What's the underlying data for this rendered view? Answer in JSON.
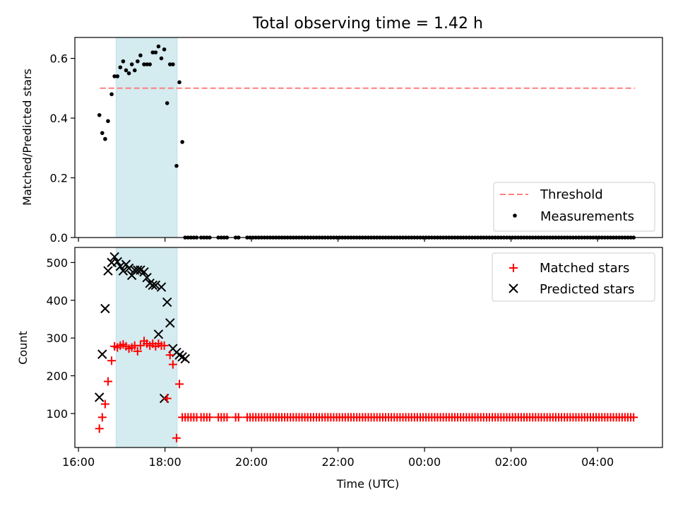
{
  "chart_data": [
    {
      "type": "scatter",
      "title": "Total observing time = 1.42 h",
      "xlabel": "",
      "ylabel": "Matched/Predicted stars",
      "xlim": [
        "2022-01-01T15:55",
        "2022-01-02T05:30"
      ],
      "ylim": [
        0,
        0.67
      ],
      "yticks": [
        0.0,
        0.2,
        0.4,
        0.6
      ],
      "ytick_labels": [
        "0.0",
        "0.2",
        "0.4",
        "0.6"
      ],
      "shaded_interval": [
        "2022-01-01T16:52",
        "2022-01-01T18:17"
      ],
      "shade_color": "#d4ebf0",
      "legend": {
        "position": "lower-right",
        "entries": [
          "Threshold",
          "Measurements"
        ]
      },
      "threshold": {
        "name": "Threshold",
        "value": 0.5,
        "x_start": "2022-01-01T16:30",
        "x_end": "2022-01-02T04:52",
        "color": "#ff7f7f"
      },
      "series": [
        {
          "name": "Measurements",
          "color": "#000000",
          "x": [
            "2022-01-01T16:29",
            "2022-01-01T16:33",
            "2022-01-01T16:37",
            "2022-01-01T16:41",
            "2022-01-01T16:46",
            "2022-01-01T16:50",
            "2022-01-01T16:54",
            "2022-01-01T16:58",
            "2022-01-01T17:02",
            "2022-01-01T17:06",
            "2022-01-01T17:10",
            "2022-01-01T17:14",
            "2022-01-01T17:18",
            "2022-01-01T17:22",
            "2022-01-01T17:26",
            "2022-01-01T17:31",
            "2022-01-01T17:35",
            "2022-01-01T17:39",
            "2022-01-01T17:43",
            "2022-01-01T17:47",
            "2022-01-01T17:51",
            "2022-01-01T17:55",
            "2022-01-01T17:59",
            "2022-01-01T18:03",
            "2022-01-01T18:07",
            "2022-01-01T18:11",
            "2022-01-01T18:16",
            "2022-01-01T18:20",
            "2022-01-01T18:24",
            "2022-01-01T18:28",
            "2022-01-01T18:32",
            "2022-01-01T18:36",
            "2022-01-01T18:40",
            "2022-01-01T18:44"
          ],
          "y": [
            0.41,
            0.35,
            0.33,
            0.39,
            0.48,
            0.54,
            0.54,
            0.57,
            0.59,
            0.56,
            0.55,
            0.58,
            0.56,
            0.59,
            0.61,
            0.58,
            0.58,
            0.58,
            0.62,
            0.62,
            0.64,
            0.6,
            0.63,
            0.45,
            0.58,
            0.58,
            0.24,
            0.52,
            0.32,
            0.0,
            0.0,
            0.0,
            0.0,
            0.0
          ]
        }
      ],
      "zero_series": {
        "name": "Measurements",
        "y": 0.0,
        "x_start": "2022-01-01T18:50",
        "x_end": "2022-01-02T04:52",
        "gaps": [
          [
            "2022-01-01T19:03",
            "2022-01-01T19:10"
          ],
          [
            "2022-01-01T19:29",
            "2022-01-01T19:36"
          ],
          [
            "2022-01-01T19:45",
            "2022-01-01T19:52"
          ]
        ]
      }
    },
    {
      "type": "scatter",
      "title": "",
      "xlabel": "Time (UTC)",
      "ylabel": "Count",
      "xlim": [
        "2022-01-01T15:55",
        "2022-01-02T05:30"
      ],
      "ylim": [
        10,
        540
      ],
      "yticks": [
        100,
        200,
        300,
        400,
        500
      ],
      "ytick_labels": [
        "100",
        "200",
        "300",
        "400",
        "500"
      ],
      "xticks": [
        "2022-01-01T16:00",
        "2022-01-01T18:00",
        "2022-01-01T20:00",
        "2022-01-01T22:00",
        "2022-01-02T00:00",
        "2022-01-02T02:00",
        "2022-01-02T04:00"
      ],
      "xtick_labels": [
        "16:00",
        "18:00",
        "20:00",
        "22:00",
        "00:00",
        "02:00",
        "04:00"
      ],
      "shaded_interval": [
        "2022-01-01T16:52",
        "2022-01-01T18:17"
      ],
      "shade_color": "#d4ebf0",
      "legend": {
        "position": "upper-right",
        "entries": [
          "Matched stars",
          "Predicted stars"
        ]
      },
      "series": [
        {
          "name": "Matched stars",
          "marker": "plus",
          "color": "#ff0000",
          "x": [
            "2022-01-01T16:29",
            "2022-01-01T16:33",
            "2022-01-01T16:37",
            "2022-01-01T16:41",
            "2022-01-01T16:46",
            "2022-01-01T16:50",
            "2022-01-01T16:54",
            "2022-01-01T16:58",
            "2022-01-01T17:02",
            "2022-01-01T17:06",
            "2022-01-01T17:10",
            "2022-01-01T17:14",
            "2022-01-01T17:18",
            "2022-01-01T17:22",
            "2022-01-01T17:26",
            "2022-01-01T17:31",
            "2022-01-01T17:35",
            "2022-01-01T17:39",
            "2022-01-01T17:43",
            "2022-01-01T17:47",
            "2022-01-01T17:51",
            "2022-01-01T17:55",
            "2022-01-01T17:59",
            "2022-01-01T18:03",
            "2022-01-01T18:07",
            "2022-01-01T18:11",
            "2022-01-01T18:16",
            "2022-01-01T18:20",
            "2022-01-01T18:24",
            "2022-01-01T18:28",
            "2022-01-01T18:32",
            "2022-01-01T18:36",
            "2022-01-01T18:40",
            "2022-01-01T18:44"
          ],
          "y": [
            60,
            90,
            125,
            185,
            240,
            278,
            275,
            280,
            283,
            278,
            272,
            275,
            280,
            265,
            280,
            292,
            285,
            280,
            285,
            278,
            285,
            280,
            280,
            140,
            255,
            230,
            35,
            178,
            90,
            90,
            90,
            90,
            90,
            90
          ]
        },
        {
          "name": "Predicted stars",
          "marker": "x",
          "color": "#000000",
          "x": [
            "2022-01-01T16:29",
            "2022-01-01T16:33",
            "2022-01-01T16:37",
            "2022-01-01T16:41",
            "2022-01-01T16:46",
            "2022-01-01T16:50",
            "2022-01-01T16:54",
            "2022-01-01T16:58",
            "2022-01-01T17:02",
            "2022-01-01T17:06",
            "2022-01-01T17:10",
            "2022-01-01T17:14",
            "2022-01-01T17:18",
            "2022-01-01T17:22",
            "2022-01-01T17:26",
            "2022-01-01T17:31",
            "2022-01-01T17:35",
            "2022-01-01T17:39",
            "2022-01-01T17:43",
            "2022-01-01T17:47",
            "2022-01-01T17:51",
            "2022-01-01T17:55",
            "2022-01-01T17:59",
            "2022-01-01T18:03",
            "2022-01-01T18:07",
            "2022-01-01T18:11",
            "2022-01-01T18:16",
            "2022-01-01T18:20",
            "2022-01-01T18:24",
            "2022-01-01T18:28"
          ],
          "y": [
            143,
            257,
            378,
            478,
            500,
            515,
            502,
            490,
            478,
            495,
            485,
            466,
            480,
            480,
            480,
            475,
            460,
            445,
            440,
            440,
            310,
            435,
            140,
            395,
            340,
            272,
            262,
            255,
            250,
            245
          ]
        }
      ],
      "constant_series": {
        "name": "Matched stars",
        "y": 90,
        "x_start": "2022-01-01T18:50",
        "x_end": "2022-01-02T04:52",
        "gaps": [
          [
            "2022-01-01T19:03",
            "2022-01-01T19:10"
          ],
          [
            "2022-01-01T19:29",
            "2022-01-01T19:36"
          ],
          [
            "2022-01-01T19:45",
            "2022-01-01T19:52"
          ]
        ]
      }
    }
  ]
}
